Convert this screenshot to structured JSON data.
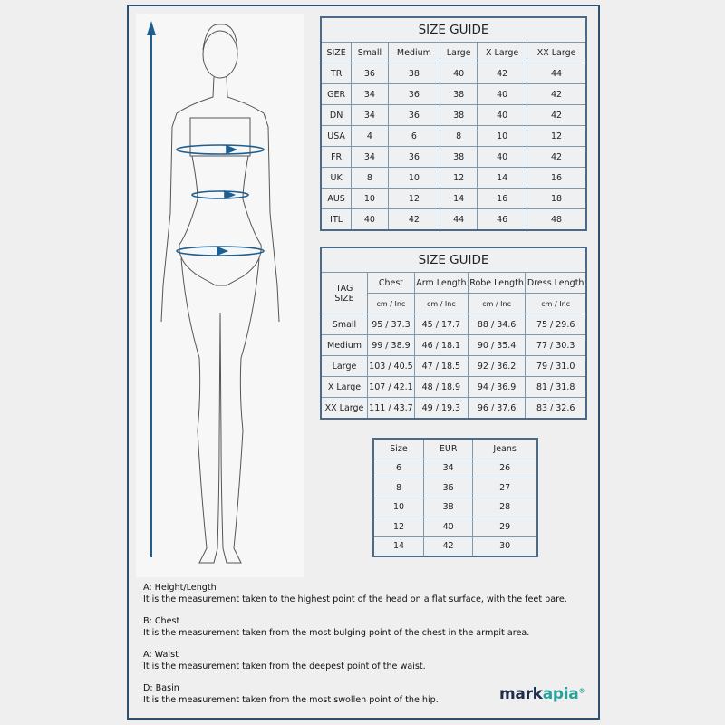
{
  "table1": {
    "title": "SIZE GUIDE",
    "headers": [
      "SIZE",
      "Small",
      "Medium",
      "Large",
      "X Large",
      "XX Large"
    ],
    "rows": [
      [
        "TR",
        "36",
        "38",
        "40",
        "42",
        "44"
      ],
      [
        "GER",
        "34",
        "36",
        "38",
        "40",
        "42"
      ],
      [
        "DN",
        "34",
        "36",
        "38",
        "40",
        "42"
      ],
      [
        "USA",
        "4",
        "6",
        "8",
        "10",
        "12"
      ],
      [
        "FR",
        "34",
        "36",
        "38",
        "40",
        "42"
      ],
      [
        "UK",
        "8",
        "10",
        "12",
        "14",
        "16"
      ],
      [
        "AUS",
        "10",
        "12",
        "14",
        "16",
        "18"
      ],
      [
        "ITL",
        "40",
        "42",
        "44",
        "46",
        "48"
      ]
    ]
  },
  "table2": {
    "title": "SIZE GUIDE",
    "tag": "TAG",
    "size": "SIZE",
    "headers": [
      "Chest",
      "Arm Length",
      "Robe Length",
      "Dress Length"
    ],
    "unit": "cm / Inc",
    "rows": [
      [
        "Small",
        "95 / 37.3",
        "45 / 17.7",
        "88 / 34.6",
        "75 / 29.6"
      ],
      [
        "Medium",
        "99 / 38.9",
        "46 / 18.1",
        "90 / 35.4",
        "77 / 30.3"
      ],
      [
        "Large",
        "103 / 40.5",
        "47 / 18.5",
        "92 / 36.2",
        "79 / 31.0"
      ],
      [
        "X Large",
        "107 / 42.1",
        "48 / 18.9",
        "94 / 36.9",
        "81 / 31.8"
      ],
      [
        "XX Large",
        "111 / 43.7",
        "49 / 19.3",
        "96 / 37.6",
        "83 / 32.6"
      ]
    ]
  },
  "table3": {
    "headers": [
      "Size",
      "EUR",
      "Jeans"
    ],
    "rows": [
      [
        "6",
        "34",
        "26"
      ],
      [
        "8",
        "36",
        "27"
      ],
      [
        "10",
        "38",
        "28"
      ],
      [
        "12",
        "40",
        "29"
      ],
      [
        "14",
        "42",
        "30"
      ]
    ]
  },
  "notes": [
    {
      "title": "A: Height/Length",
      "text": "It is the measurement taken to the highest point of the head on a flat surface, with the feet bare."
    },
    {
      "title": "B: Chest",
      "text": "It is the measurement taken from the most bulging point of the chest in the armpit area."
    },
    {
      "title": "A: Waist",
      "text": "It is the measurement taken from the deepest point of the waist."
    },
    {
      "title": "D: Basin",
      "text": "It is the measurement taken from the most swollen point of the hip."
    }
  ],
  "logo": {
    "part1": "mark",
    "part2": "apia",
    "mark": "®"
  },
  "colors": {
    "frame": "#2f4f6f",
    "arrow": "#1f5f8f",
    "logo_dark": "#1e2e4a",
    "logo_teal": "#2aa29a"
  }
}
